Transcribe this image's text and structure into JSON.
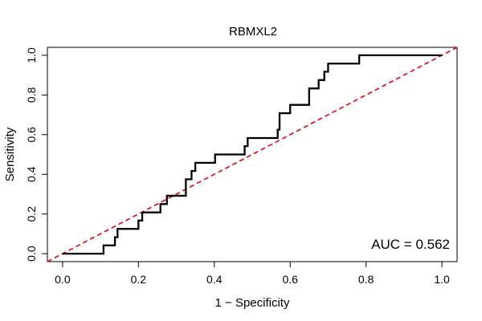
{
  "chart_data": {
    "type": "line",
    "title": "RBMXL2",
    "xlabel": "1 − Specificity",
    "ylabel": "Sensitivity",
    "xlim": [
      -0.04,
      1.04
    ],
    "ylim": [
      -0.04,
      1.04
    ],
    "x_ticks": [
      0.0,
      0.2,
      0.4,
      0.6,
      0.8,
      1.0
    ],
    "x_tick_labels": [
      "0.0",
      "0.2",
      "0.4",
      "0.6",
      "0.8",
      "1.0"
    ],
    "y_ticks": [
      0.0,
      0.2,
      0.4,
      0.6,
      0.8,
      1.0
    ],
    "y_tick_labels": [
      "0.0",
      "0.2",
      "0.4",
      "0.6",
      "0.8",
      "1.0"
    ],
    "grid": false,
    "legend": "none",
    "annotation": "AUC = 0.562",
    "series": [
      {
        "color": "#000000",
        "x": [
          0.0,
          0.108,
          0.108,
          0.138,
          0.138,
          0.145,
          0.145,
          0.2,
          0.2,
          0.21,
          0.21,
          0.258,
          0.258,
          0.275,
          0.275,
          0.325,
          0.325,
          0.34,
          0.34,
          0.35,
          0.35,
          0.402,
          0.402,
          0.48,
          0.48,
          0.488,
          0.488,
          0.567,
          0.567,
          0.572,
          0.572,
          0.6,
          0.6,
          0.65,
          0.65,
          0.675,
          0.675,
          0.69,
          0.69,
          0.7,
          0.7,
          0.782,
          0.782,
          1.0
        ],
        "y": [
          0.0,
          0.0,
          0.042,
          0.042,
          0.083,
          0.083,
          0.125,
          0.125,
          0.167,
          0.167,
          0.208,
          0.208,
          0.25,
          0.25,
          0.292,
          0.292,
          0.375,
          0.375,
          0.417,
          0.417,
          0.458,
          0.458,
          0.5,
          0.5,
          0.542,
          0.542,
          0.583,
          0.583,
          0.625,
          0.625,
          0.708,
          0.708,
          0.75,
          0.75,
          0.833,
          0.833,
          0.875,
          0.875,
          0.917,
          0.917,
          0.958,
          0.958,
          1.0,
          1.0
        ]
      },
      {
        "color": "#e8000b",
        "x": [
          -0.04,
          1.04
        ],
        "y": [
          -0.04,
          1.04
        ]
      }
    ]
  }
}
